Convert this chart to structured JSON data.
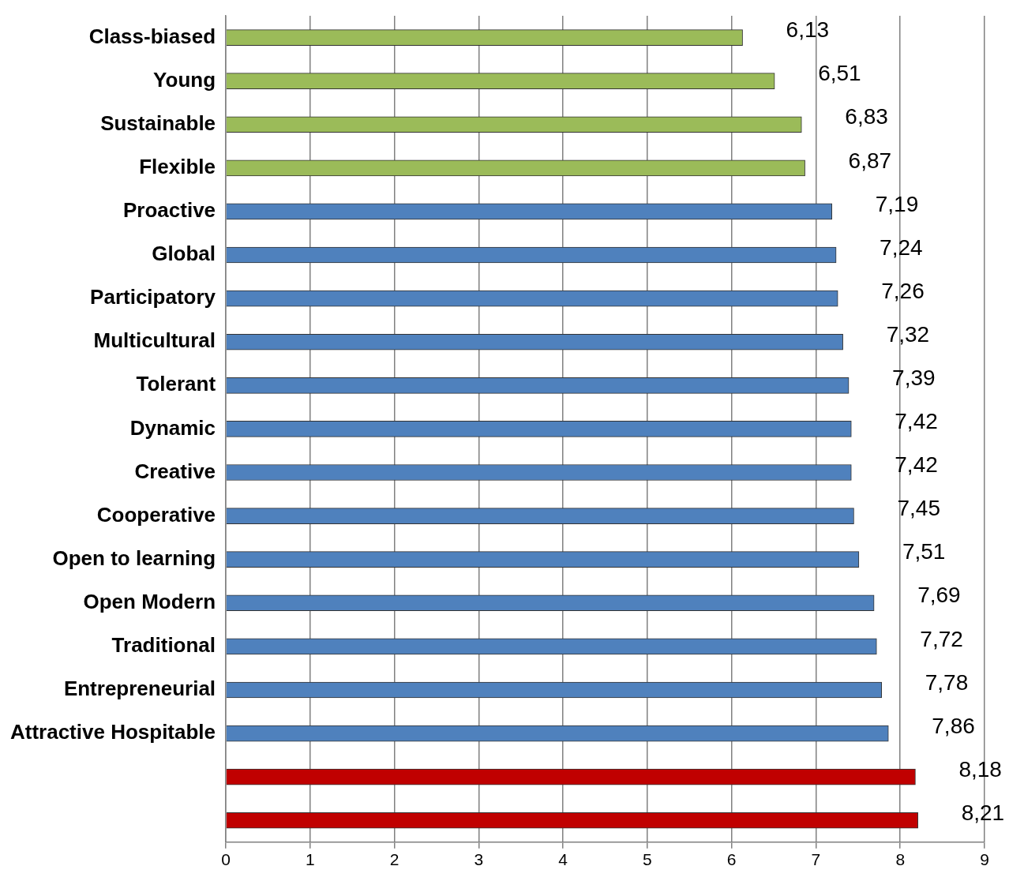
{
  "chart_data": {
    "type": "bar",
    "orientation": "horizontal",
    "categories": [
      "Class-biased",
      "Young",
      "Sustainable",
      "Flexible",
      "Proactive",
      "Global",
      "Participatory",
      "Multicultural",
      "Tolerant",
      "Dynamic",
      "Creative",
      "Cooperative",
      "Open to learning",
      "Open Modern",
      "Traditional",
      "Entrepreneurial",
      "Attractive Hospitable",
      null,
      null
    ],
    "values": [
      6.13,
      6.51,
      6.83,
      6.87,
      7.19,
      7.24,
      7.26,
      7.32,
      7.39,
      7.42,
      7.42,
      7.45,
      7.51,
      7.69,
      7.72,
      7.78,
      7.86,
      8.18,
      8.21
    ],
    "colors": [
      "#9bbb59",
      "#9bbb59",
      "#9bbb59",
      "#9bbb59",
      "#4f81bd",
      "#4f81bd",
      "#4f81bd",
      "#4f81bd",
      "#4f81bd",
      "#4f81bd",
      "#4f81bd",
      "#4f81bd",
      "#4f81bd",
      "#4f81bd",
      "#4f81bd",
      "#4f81bd",
      "#4f81bd",
      "#c00000",
      "#c00000"
    ],
    "value_labels": [
      "6,13",
      "6,51",
      "6,83",
      "6,87",
      "7,19",
      "7,24",
      "7,26",
      "7,32",
      "7,39",
      "7,42",
      "7,42",
      "7,45",
      "7,51",
      "7,69",
      "7,72",
      "7,78",
      "7,86",
      "8,18",
      "8,21"
    ],
    "xlim": [
      0,
      9
    ],
    "xticks": [
      0,
      1,
      2,
      3,
      4,
      5,
      6,
      7,
      8,
      9
    ],
    "grid": "x",
    "legend": false
  }
}
